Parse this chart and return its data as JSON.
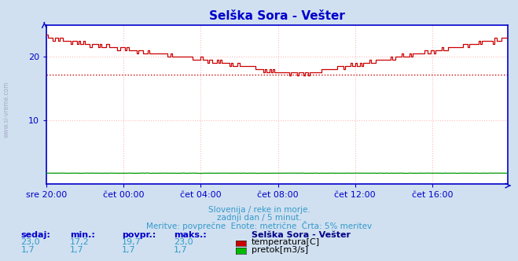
{
  "title": "Selška Sora - Vešter",
  "title_color": "#0000cc",
  "bg_color": "#d0e0f0",
  "plot_bg_color": "#ffffff",
  "grid_color": "#ffbbbb",
  "axis_color": "#0000cc",
  "watermark": "www.si-vreme.com",
  "xlabel_ticks": [
    "sre 20:00",
    "čet 00:00",
    "čet 04:00",
    "čet 08:00",
    "čet 12:00",
    "čet 16:00"
  ],
  "footnote1": "Slovenija / reke in morje.",
  "footnote2": "zadnji dan / 5 minut.",
  "footnote3": "Meritve: povprečne  Enote: metrične  Črta: 5% meritev",
  "footnote_color": "#3399cc",
  "legend_title": "Selška Sora - Vešter",
  "legend_title_color": "#000088",
  "table_headers": [
    "sedaj:",
    "min.:",
    "povpr.:",
    "maks.:"
  ],
  "table_header_color": "#0000cc",
  "table_rows": [
    [
      "23,0",
      "17,2",
      "19,7",
      "23,0",
      "#cc0000",
      "temperatura[C]"
    ],
    [
      "1,7",
      "1,7",
      "1,7",
      "1,7",
      "#00bb00",
      "pretok[m3/s]"
    ]
  ],
  "table_value_color": "#3399cc",
  "ylim": [
    0,
    25
  ],
  "yticks": [
    10,
    20
  ],
  "avg_line_y": 17.2,
  "avg_line_color": "#cc0000",
  "temp_line_color": "#cc0000",
  "flow_line_color": "#009900",
  "n_points": 288,
  "tick_positions": [
    0,
    48,
    96,
    144,
    192,
    240
  ]
}
